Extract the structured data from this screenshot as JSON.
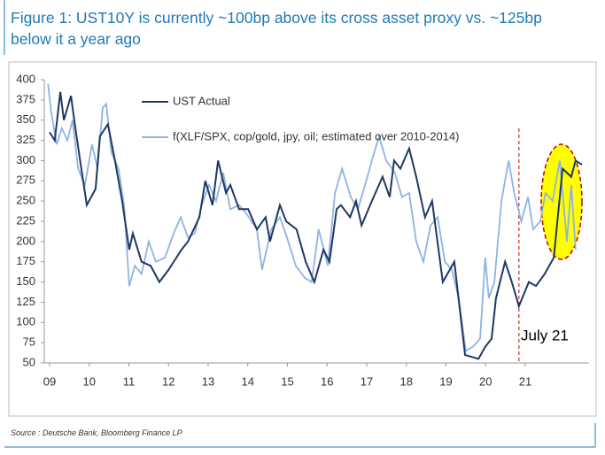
{
  "chart_data": {
    "type": "line",
    "title": "Figure 1: UST10Y is currently ~100bp above its cross asset proxy vs. ~125bp below it a year ago",
    "source": "Source : Deutsche Bank, Bloomberg Finance LP",
    "annotation": "July 21",
    "annotation_x": 20.84,
    "xlim": [
      8.9,
      22.6
    ],
    "xticks": [
      {
        "value": 9,
        "label": "09"
      },
      10,
      11,
      12,
      13,
      14,
      15,
      16,
      17,
      18,
      19,
      20,
      21
    ],
    "ylim": [
      50,
      400
    ],
    "yticks": [
      50,
      75,
      100,
      125,
      150,
      175,
      200,
      225,
      250,
      275,
      300,
      325,
      350,
      375,
      400
    ],
    "series": [
      {
        "name": "UST Actual",
        "color": "#1f3864",
        "x": [
          9.0,
          9.13,
          9.27,
          9.36,
          9.54,
          9.65,
          9.8,
          9.94,
          10.16,
          10.27,
          10.47,
          10.65,
          10.83,
          11.01,
          11.1,
          11.32,
          11.55,
          11.77,
          12.0,
          12.33,
          12.49,
          12.78,
          12.93,
          13.11,
          13.25,
          13.45,
          13.56,
          13.78,
          14.01,
          14.23,
          14.45,
          14.56,
          14.81,
          14.97,
          15.23,
          15.46,
          15.68,
          15.91,
          16.06,
          16.24,
          16.35,
          16.58,
          16.73,
          16.87,
          17.13,
          17.4,
          17.58,
          17.69,
          17.85,
          18.07,
          18.25,
          18.47,
          18.65,
          18.92,
          19.21,
          19.48,
          19.82,
          19.99,
          20.15,
          20.26,
          20.49,
          20.66,
          20.84,
          21.09,
          21.27,
          21.49,
          21.72,
          21.94,
          22.16,
          22.27,
          22.43
        ],
        "values": [
          335,
          325,
          385,
          350,
          380,
          340,
          290,
          245,
          265,
          330,
          345,
          300,
          250,
          190,
          210,
          175,
          170,
          150,
          165,
          190,
          200,
          230,
          275,
          245,
          300,
          260,
          270,
          240,
          240,
          215,
          230,
          200,
          245,
          225,
          215,
          175,
          150,
          190,
          175,
          240,
          245,
          230,
          250,
          220,
          250,
          280,
          255,
          300,
          290,
          315,
          280,
          230,
          250,
          150,
          175,
          60,
          55,
          70,
          80,
          130,
          175,
          150,
          120,
          150,
          145,
          160,
          180,
          290,
          280,
          300,
          295
        ]
      },
      {
        "name": "f(XLF/SPX, cop/gold, jpy, oil;  estimated over 2010-2014)",
        "color": "#8eb4e3",
        "x": [
          8.96,
          9.04,
          9.18,
          9.31,
          9.45,
          9.58,
          9.72,
          9.89,
          10.07,
          10.21,
          10.34,
          10.43,
          10.56,
          10.74,
          10.88,
          11.01,
          11.15,
          11.32,
          11.5,
          11.68,
          11.91,
          12.13,
          12.31,
          12.49,
          12.66,
          12.84,
          13.02,
          13.2,
          13.38,
          13.56,
          13.78,
          13.96,
          14.23,
          14.36,
          14.59,
          14.81,
          14.99,
          15.21,
          15.44,
          15.61,
          15.79,
          16.02,
          16.2,
          16.38,
          16.6,
          16.78,
          16.96,
          17.13,
          17.31,
          17.49,
          17.71,
          17.89,
          18.07,
          18.25,
          18.43,
          18.61,
          18.79,
          18.97,
          19.15,
          19.32,
          19.5,
          19.68,
          19.86,
          19.99,
          20.08,
          20.22,
          20.4,
          20.58,
          20.72,
          20.9,
          21.07,
          21.2,
          21.38,
          21.51,
          21.69,
          21.87,
          22.05,
          22.16,
          22.27
        ],
        "values": [
          395,
          360,
          320,
          340,
          325,
          350,
          290,
          270,
          320,
          290,
          365,
          370,
          310,
          290,
          245,
          145,
          170,
          160,
          200,
          175,
          180,
          210,
          230,
          205,
          210,
          245,
          270,
          250,
          285,
          240,
          245,
          235,
          215,
          165,
          215,
          230,
          205,
          170,
          155,
          150,
          215,
          170,
          260,
          290,
          255,
          240,
          270,
          300,
          330,
          300,
          285,
          255,
          260,
          200,
          175,
          220,
          230,
          175,
          165,
          130,
          65,
          70,
          80,
          180,
          130,
          150,
          250,
          300,
          260,
          225,
          255,
          215,
          225,
          260,
          250,
          300,
          200,
          270,
          190
        ]
      }
    ]
  }
}
